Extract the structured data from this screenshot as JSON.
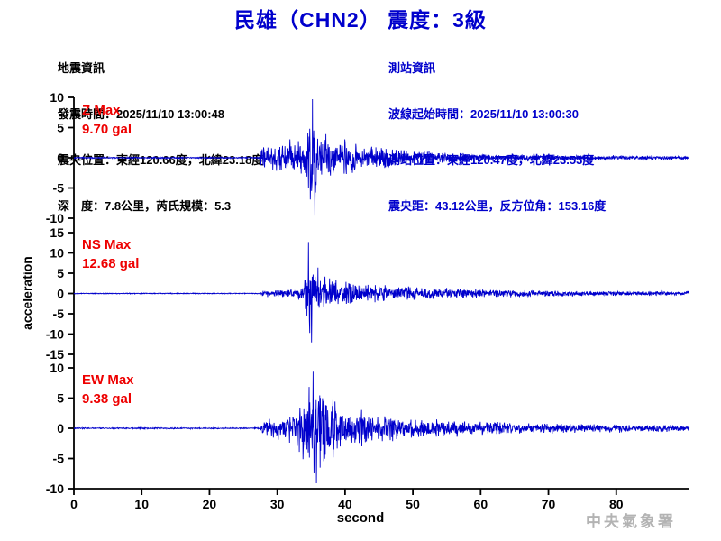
{
  "header": {
    "title": "民雄（CHN2） 震度：3級"
  },
  "earthquake_info": {
    "heading": "地震資訊",
    "origin_time": "發震時間：2025/11/10 13:00:48",
    "epicenter": "震央位置：東經120.66度，北緯23.18度",
    "depth_magnitude": "深　度：7.8公里，芮氏規模：5.3"
  },
  "station_info": {
    "heading": "測站資訊",
    "wave_start_time": "波線起始時間：2025/11/10 13:00:30",
    "station_location": "測站位置：東經120.47度，北緯23.53度",
    "distance_azimuth": "震央距：43.12公里，反方位角：153.16度"
  },
  "footer": {
    "watermark": "中央氣象署"
  },
  "colors": {
    "title_blue": "#0000cc",
    "station_info_blue": "#0000cc",
    "trace_blue": "#0000cc",
    "max_label_red": "#ee0000",
    "axis_black": "#000000",
    "watermark_gray": "#b3b3b3"
  },
  "chart_data": {
    "type": "line",
    "title": "民雄（CHN2） 震度：3級",
    "xlabel": "second",
    "ylabel": "acceleration",
    "x_range": [
      0,
      90.8
    ],
    "x_ticks": [
      0,
      10,
      20,
      30,
      40,
      50,
      60,
      70,
      80
    ],
    "grid": false,
    "legend": "none",
    "series": [
      {
        "name": "Z",
        "max_label": "Z Max",
        "max_value": "9.70 gal",
        "max_gal": 9.7,
        "ylim": [
          -10,
          10
        ],
        "yticks": [
          10,
          5,
          0,
          -5,
          -10
        ],
        "peak": {
          "t": 35.2,
          "down_ratio": 0.99,
          "down_dt": 0.35
        },
        "envelope_t_gal": [
          [
            0,
            0.13
          ],
          [
            27.3,
            0.13
          ],
          [
            27.7,
            2.4
          ],
          [
            29,
            2.4
          ],
          [
            31,
            3.0
          ],
          [
            33,
            3.3
          ],
          [
            34.3,
            4.0
          ],
          [
            35.2,
            9.7
          ],
          [
            36,
            5.2
          ],
          [
            37.5,
            4.0
          ],
          [
            40,
            3.2
          ],
          [
            43,
            2.4
          ],
          [
            46,
            1.9
          ],
          [
            50,
            1.4
          ],
          [
            55,
            1.0
          ],
          [
            60,
            0.8
          ],
          [
            66,
            0.65
          ],
          [
            73,
            0.5
          ],
          [
            82,
            0.42
          ],
          [
            90.8,
            0.35
          ]
        ]
      },
      {
        "name": "NS",
        "max_label": "NS Max",
        "max_value": "12.68 gal",
        "max_gal": 12.68,
        "ylim": [
          -15,
          15
        ],
        "yticks": [
          15,
          10,
          5,
          0,
          -5,
          -10,
          -15
        ],
        "peak": {
          "t": 34.6,
          "down_ratio": 0.95,
          "down_dt": 0.45
        },
        "envelope_t_gal": [
          [
            0,
            0.12
          ],
          [
            27.4,
            0.12
          ],
          [
            27.9,
            0.85
          ],
          [
            29.5,
            0.95
          ],
          [
            31.5,
            1.2
          ],
          [
            33.3,
            1.6
          ],
          [
            34.0,
            3.0
          ],
          [
            34.6,
            12.68
          ],
          [
            35.4,
            9.0
          ],
          [
            36.3,
            6.0
          ],
          [
            37.5,
            4.6
          ],
          [
            39,
            3.8
          ],
          [
            41,
            3.2
          ],
          [
            44,
            2.6
          ],
          [
            47,
            2.1
          ],
          [
            50,
            1.8
          ],
          [
            54,
            1.5
          ],
          [
            58,
            1.25
          ],
          [
            63,
            1.0
          ],
          [
            70,
            0.85
          ],
          [
            78,
            0.7
          ],
          [
            90.8,
            0.55
          ]
        ]
      },
      {
        "name": "EW",
        "max_label": "EW Max",
        "max_value": "9.38 gal",
        "max_gal": 9.38,
        "ylim": [
          -10,
          10
        ],
        "yticks": [
          10,
          5,
          0,
          -5,
          -10
        ],
        "peak": {
          "t": 35.3,
          "down_ratio": 0.97,
          "down_dt": 0.5
        },
        "envelope_t_gal": [
          [
            0,
            0.12
          ],
          [
            27.5,
            0.12
          ],
          [
            28,
            1.7
          ],
          [
            29.5,
            1.9
          ],
          [
            31.5,
            2.3
          ],
          [
            33,
            3.2
          ],
          [
            34.2,
            7.5
          ],
          [
            35.3,
            9.38
          ],
          [
            36.5,
            8.0
          ],
          [
            38,
            6.0
          ],
          [
            39.5,
            4.5
          ],
          [
            41.5,
            3.4
          ],
          [
            44,
            2.7
          ],
          [
            47,
            2.2
          ],
          [
            51,
            1.8
          ],
          [
            55,
            1.5
          ],
          [
            60,
            1.2
          ],
          [
            66,
            1.0
          ],
          [
            74,
            0.85
          ],
          [
            82,
            0.7
          ],
          [
            90.8,
            0.6
          ]
        ]
      }
    ]
  }
}
